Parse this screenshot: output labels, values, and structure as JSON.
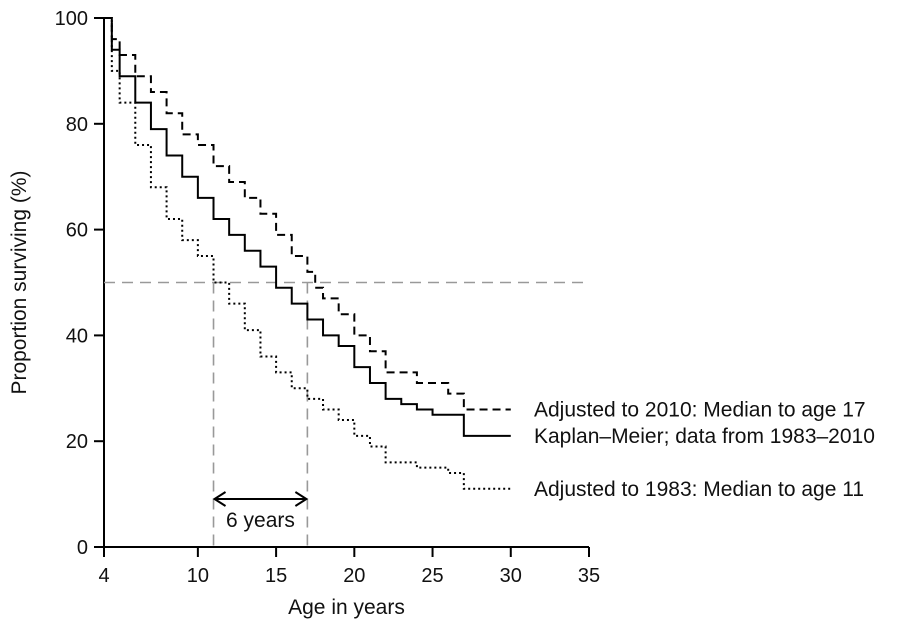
{
  "chart_data": {
    "type": "line",
    "xlabel": "Age in years",
    "ylabel": "Proportion surviving (%)",
    "xlim": [
      4,
      35
    ],
    "ylim": [
      0,
      100
    ],
    "x_ticks": [
      4,
      10,
      15,
      20,
      25,
      30,
      35
    ],
    "y_ticks": [
      0,
      20,
      40,
      60,
      80,
      100
    ],
    "series": [
      {
        "name": "Adjusted to 2010: Median to age 17",
        "line_style": "dashed",
        "points": [
          [
            4,
            100
          ],
          [
            4.5,
            96
          ],
          [
            5,
            93
          ],
          [
            6,
            89
          ],
          [
            7,
            86
          ],
          [
            8,
            82
          ],
          [
            9,
            78
          ],
          [
            10,
            76
          ],
          [
            11,
            72
          ],
          [
            12,
            69
          ],
          [
            13,
            66
          ],
          [
            14,
            63
          ],
          [
            15,
            59
          ],
          [
            16,
            55
          ],
          [
            17,
            52
          ],
          [
            17.5,
            49
          ],
          [
            18,
            47
          ],
          [
            19,
            44
          ],
          [
            20,
            40
          ],
          [
            21,
            37
          ],
          [
            22,
            33
          ],
          [
            23,
            33
          ],
          [
            24,
            31
          ],
          [
            25,
            31
          ],
          [
            26,
            29
          ],
          [
            27,
            26
          ],
          [
            30,
            26
          ]
        ]
      },
      {
        "name": "Kaplan–Meier; data from 1983–2010",
        "line_style": "solid",
        "points": [
          [
            4,
            100
          ],
          [
            4.5,
            94
          ],
          [
            5,
            89
          ],
          [
            6,
            84
          ],
          [
            7,
            79
          ],
          [
            8,
            74
          ],
          [
            9,
            70
          ],
          [
            10,
            66
          ],
          [
            11,
            62
          ],
          [
            12,
            59
          ],
          [
            13,
            56
          ],
          [
            14,
            53
          ],
          [
            15,
            49
          ],
          [
            16,
            46
          ],
          [
            17,
            43
          ],
          [
            18,
            40
          ],
          [
            19,
            38
          ],
          [
            20,
            34
          ],
          [
            21,
            31
          ],
          [
            22,
            28
          ],
          [
            23,
            27
          ],
          [
            24,
            26
          ],
          [
            25,
            25
          ],
          [
            26,
            25
          ],
          [
            27,
            21
          ],
          [
            30,
            21
          ]
        ]
      },
      {
        "name": "Adjusted to 1983: Median to age 11",
        "line_style": "dotted",
        "points": [
          [
            4,
            100
          ],
          [
            4.5,
            90
          ],
          [
            5,
            84
          ],
          [
            6,
            76
          ],
          [
            7,
            68
          ],
          [
            8,
            62
          ],
          [
            9,
            58
          ],
          [
            10,
            55
          ],
          [
            11,
            50
          ],
          [
            12,
            46
          ],
          [
            13,
            41
          ],
          [
            14,
            36
          ],
          [
            15,
            33
          ],
          [
            16,
            30
          ],
          [
            17,
            28
          ],
          [
            18,
            26
          ],
          [
            19,
            24
          ],
          [
            20,
            21
          ],
          [
            21,
            19
          ],
          [
            22,
            16
          ],
          [
            23,
            16
          ],
          [
            24,
            15
          ],
          [
            25,
            15
          ],
          [
            26,
            14
          ],
          [
            27,
            11
          ],
          [
            30,
            11
          ]
        ]
      }
    ],
    "reference_lines": {
      "median_y": 50,
      "median_x_1983": 11,
      "median_x_2010": 17
    },
    "annotation": "6 years",
    "grid": false
  }
}
